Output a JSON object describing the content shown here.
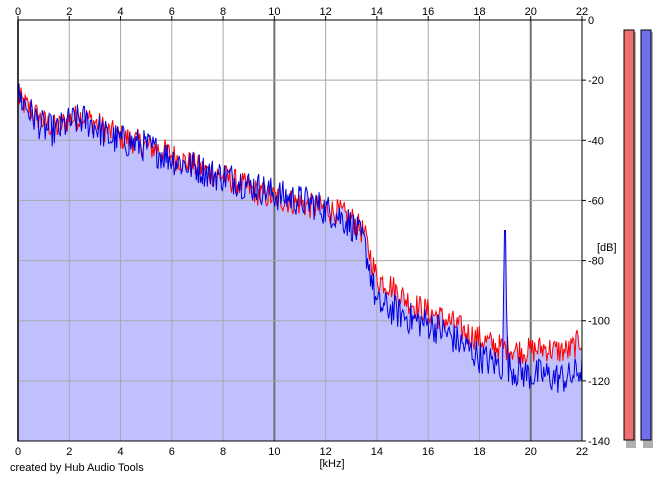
{
  "chart_data": {
    "type": "area",
    "title": "",
    "xlabel": "[kHz]",
    "ylabel": "[dB]",
    "xlim": [
      0,
      22
    ],
    "ylim": [
      -140,
      0
    ],
    "x_ticks": [
      0,
      2,
      4,
      6,
      8,
      10,
      12,
      14,
      16,
      18,
      20,
      22
    ],
    "x_tick_labels": [
      "0",
      "2",
      "4",
      "6",
      "8",
      "10",
      "12",
      "14",
      "16",
      "18",
      "20",
      "22"
    ],
    "y_ticks": [
      0,
      -20,
      -40,
      -60,
      -80,
      -100,
      -120,
      -140
    ],
    "y_tick_labels": [
      "0",
      "-20",
      "-40",
      "-60",
      "-80",
      "-100",
      "-120",
      "-140"
    ],
    "grid": true,
    "x": [
      0,
      0.5,
      1,
      1.5,
      2,
      2.5,
      3,
      3.5,
      4,
      4.5,
      5,
      5.5,
      6,
      6.5,
      7,
      7.5,
      8,
      8.5,
      9,
      9.5,
      10,
      10.5,
      11,
      11.5,
      12,
      12.5,
      13,
      13.5,
      13.8,
      14,
      14.5,
      15,
      15.5,
      16,
      16.5,
      17,
      17.5,
      18,
      18.5,
      18.9,
      19,
      19.1,
      19.5,
      20,
      20.5,
      21,
      21.5,
      22
    ],
    "series": [
      {
        "color": "#ff0000",
        "values": [
          -26,
          -30,
          -34,
          -36,
          -33,
          -32,
          -34,
          -37,
          -39,
          -40,
          -42,
          -43,
          -45,
          -47,
          -49,
          -51,
          -52,
          -54,
          -56,
          -58,
          -59,
          -60,
          -61,
          -62,
          -63,
          -64,
          -66,
          -71,
          -80,
          -86,
          -88,
          -92,
          -95,
          -97,
          -99,
          -101,
          -104,
          -106,
          -108,
          -109,
          -109,
          -109,
          -110,
          -110,
          -109,
          -110,
          -110,
          -106
        ]
      },
      {
        "color": "#0000dd",
        "values": [
          -25,
          -31,
          -36,
          -37,
          -34,
          -33,
          -35,
          -39,
          -40,
          -41,
          -42,
          -44,
          -46,
          -48,
          -49,
          -51,
          -52,
          -53,
          -55,
          -56,
          -58,
          -59,
          -60,
          -61,
          -63,
          -65,
          -68,
          -74,
          -86,
          -95,
          -96,
          -98,
          -100,
          -101,
          -103,
          -106,
          -109,
          -112,
          -114,
          -115,
          -70,
          -115,
          -117,
          -118,
          -118,
          -119,
          -119,
          -116
        ]
      }
    ],
    "area_fill": "#c0c0ff",
    "level_meters": [
      {
        "color": "#ee7070",
        "level": 1.0
      },
      {
        "color": "#7070ee",
        "level": 1.0
      }
    ]
  },
  "footer": {
    "credit": "created by Hub Audio Tools"
  }
}
